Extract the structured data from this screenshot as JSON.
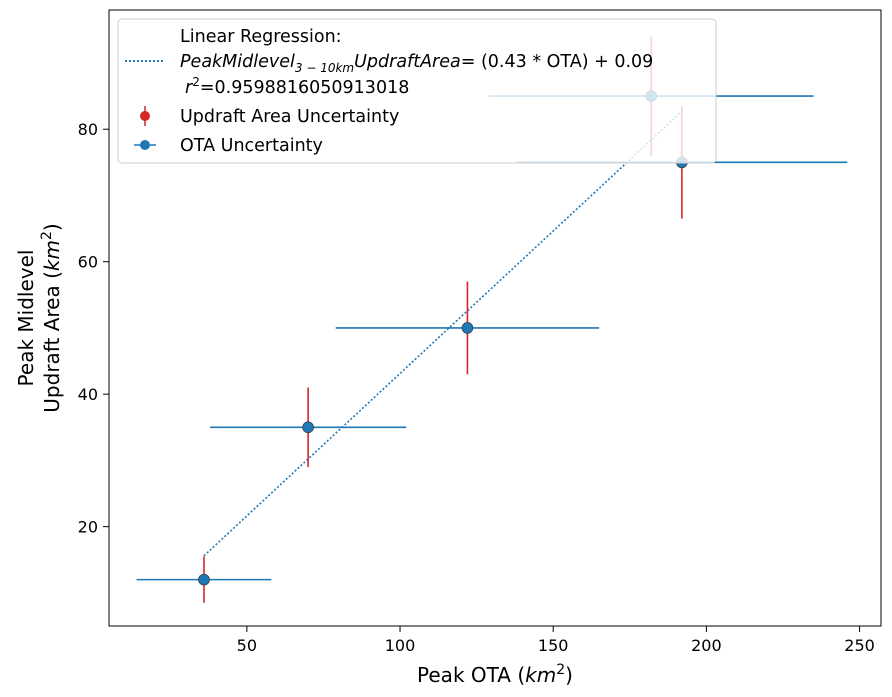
{
  "chart_data": {
    "type": "scatter",
    "xlabel": "Peak OTA (km²)",
    "xlabel_text": "Peak OTA (",
    "xlabel_unit": "km",
    "xlabel_exp": "2",
    "xlabel_close": ")",
    "ylabel_line1": "Peak Midlevel",
    "ylabel_line2_text": "Updraft Area (",
    "ylabel_line2_unit": "km",
    "ylabel_line2_exp": "2",
    "ylabel_line2_close": ")",
    "xlim": [
      5,
      257
    ],
    "ylim": [
      5,
      98
    ],
    "xticks": [
      50,
      100,
      150,
      200,
      250
    ],
    "yticks": [
      20,
      40,
      60,
      80
    ],
    "grid": false,
    "legend_position": "upper-left",
    "series": [
      {
        "name": "Updraft Area Uncertainty",
        "color": "#d62728",
        "kind": "y-errorbars",
        "points": [
          {
            "x": 36,
            "y": 12,
            "yerr": 3.5
          },
          {
            "x": 70,
            "y": 35,
            "yerr": 6
          },
          {
            "x": 122,
            "y": 50,
            "yerr": 7
          },
          {
            "x": 182,
            "y": 85,
            "yerr": 9
          },
          {
            "x": 192,
            "y": 75,
            "yerr": 8.5
          }
        ]
      },
      {
        "name": "OTA Uncertainty",
        "color": "#1f77b4",
        "kind": "x-errorbars",
        "points": [
          {
            "x": 36,
            "y": 12,
            "xerr": 22
          },
          {
            "x": 70,
            "y": 35,
            "xerr": 32
          },
          {
            "x": 122,
            "y": 50,
            "xerr": 43
          },
          {
            "x": 182,
            "y": 85,
            "xerr": 53
          },
          {
            "x": 192,
            "y": 75,
            "xerr": 54
          }
        ]
      }
    ],
    "regression": {
      "title": "Linear Regression:",
      "eq_prefix": "PeakMidlevel",
      "eq_sub": "3 − 10km",
      "eq_suffix": "UpdraftArea",
      "eq_rhs": "= (0.43 * OTA) + 0.09",
      "r2_label": "r",
      "r2_exp": "2",
      "r2_value": "=0.9598816050913018",
      "color": "#1f77b4",
      "line": {
        "x": [
          36,
          192
        ],
        "y": [
          15.6,
          82.7
        ]
      }
    }
  }
}
